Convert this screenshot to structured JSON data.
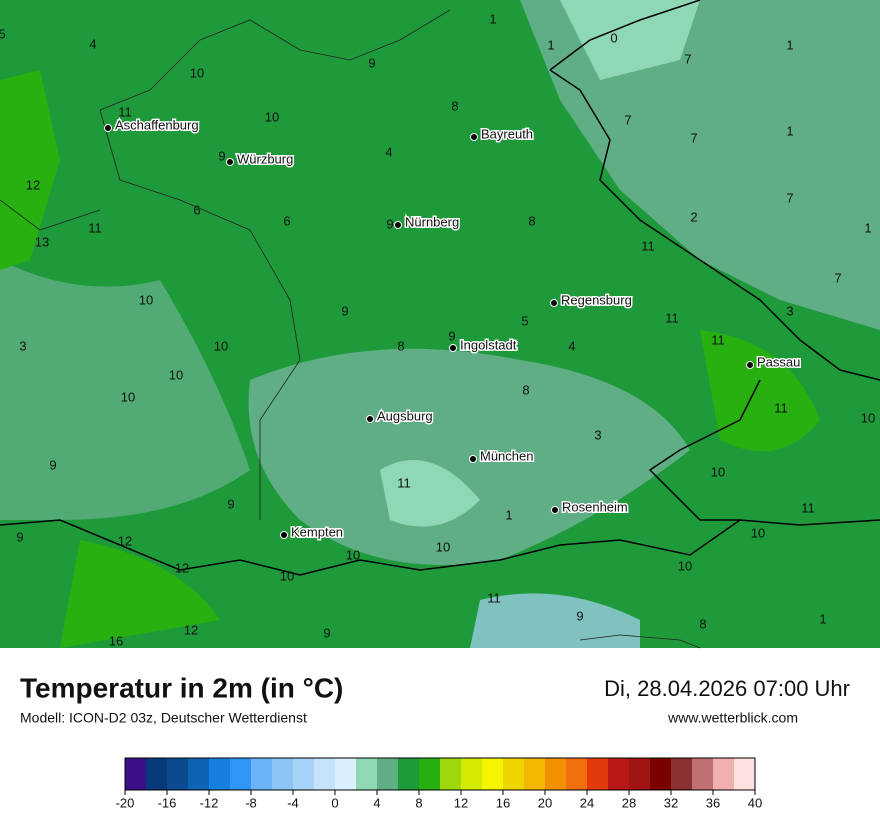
{
  "map": {
    "cities": [
      "Aschaffenburg",
      "Würzburg",
      "Bayreuth",
      "Nürnberg",
      "Regensburg",
      "Ingolstadt",
      "Passau",
      "Augsburg",
      "München",
      "Rosenheim",
      "Kempten"
    ],
    "values": [
      5,
      4,
      1,
      1,
      0,
      1,
      9,
      10,
      7,
      8,
      11,
      10,
      7,
      7,
      1,
      9,
      4,
      12,
      6,
      6,
      11,
      9,
      8,
      2,
      7,
      1,
      13,
      11,
      7,
      10,
      9,
      5,
      11,
      3,
      3,
      10,
      8,
      9,
      4,
      11,
      10,
      10,
      8,
      11,
      10,
      3,
      9,
      11,
      10,
      9,
      1,
      11,
      10,
      9,
      12,
      10,
      10,
      12,
      10,
      10,
      11,
      9,
      8,
      1,
      9,
      12,
      16
    ]
  },
  "footer": {
    "title": "Temperatur in 2m (in °C)",
    "model": "Modell: ICON-D2 03z, Deutscher Wetterdienst",
    "date": "Di, 28.04.2026 07:00 Uhr",
    "website": "www.wetterblick.com"
  },
  "legend": {
    "range": [
      -20,
      40
    ],
    "ticks": [
      -20,
      -16,
      -12,
      -8,
      -4,
      0,
      4,
      8,
      12,
      16,
      20,
      24,
      28,
      32,
      36,
      40
    ],
    "colors": [
      "#3b0f87",
      "#083a7a",
      "#0b4a8f",
      "#0f63b5",
      "#1680e0",
      "#2f96f5",
      "#6ab3f7",
      "#8cc4f8",
      "#a8d3f9",
      "#c5e2fb",
      "#dcedfc",
      "#8fd8b6",
      "#5fae85",
      "#1d9a3a",
      "#27b010",
      "#9fd80a",
      "#d4ea02",
      "#f5f500",
      "#f0d400",
      "#f3b700",
      "#f29000",
      "#f07010",
      "#e33a0a",
      "#b81818",
      "#a01414",
      "#7a0000",
      "#8a3030",
      "#c07070",
      "#f0b0b0",
      "#fde0e0"
    ]
  }
}
